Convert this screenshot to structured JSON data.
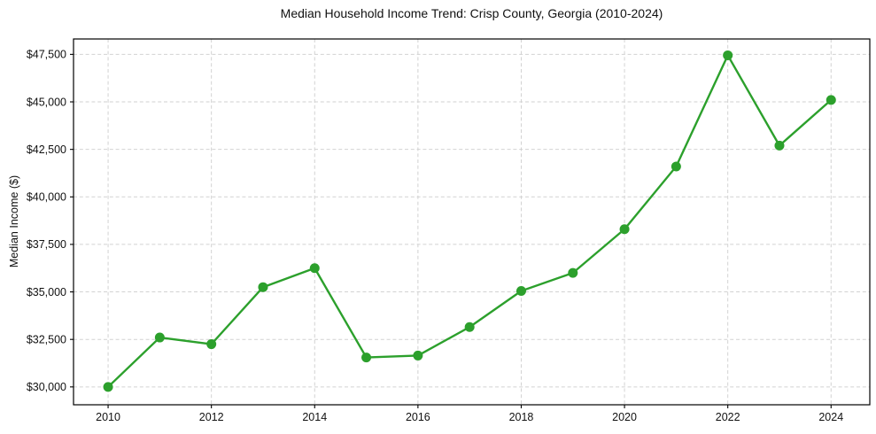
{
  "chart_data": {
    "type": "line",
    "title": "Median Household Income Trend: Crisp County, Georgia (2010-2024)",
    "xlabel": "",
    "ylabel": "Median Income ($)",
    "x": [
      2010,
      2011,
      2012,
      2013,
      2014,
      2015,
      2016,
      2017,
      2018,
      2019,
      2020,
      2021,
      2022,
      2023,
      2024
    ],
    "values": [
      30000,
      32600,
      32250,
      35250,
      36250,
      31550,
      31650,
      33150,
      35050,
      36000,
      38300,
      41600,
      47450,
      42700,
      45100
    ],
    "x_ticks": [
      {
        "value": 2010,
        "label": "2010"
      },
      {
        "value": 2012,
        "label": "2012"
      },
      {
        "value": 2014,
        "label": "2014"
      },
      {
        "value": 2016,
        "label": "2016"
      },
      {
        "value": 2018,
        "label": "2018"
      },
      {
        "value": 2020,
        "label": "2020"
      },
      {
        "value": 2022,
        "label": "2022"
      },
      {
        "value": 2024,
        "label": "2024"
      }
    ],
    "y_ticks": [
      {
        "value": 30000,
        "label": "$30,000"
      },
      {
        "value": 32500,
        "label": "$32,500"
      },
      {
        "value": 35000,
        "label": "$35,000"
      },
      {
        "value": 37500,
        "label": "$37,500"
      },
      {
        "value": 40000,
        "label": "$40,000"
      },
      {
        "value": 42500,
        "label": "$42,500"
      },
      {
        "value": 45000,
        "label": "$45,000"
      },
      {
        "value": 47500,
        "label": "$47,500"
      }
    ],
    "xlim": [
      2009.33,
      2024.75
    ],
    "ylim": [
      29060,
      48310
    ],
    "grid": true,
    "grid_style": "dashed",
    "legend": "none",
    "line_color": "#2ca02c",
    "marker": "circle",
    "grid_color": "#d2d2d2",
    "frame_color": "#000000",
    "background_color": "#ffffff"
  }
}
